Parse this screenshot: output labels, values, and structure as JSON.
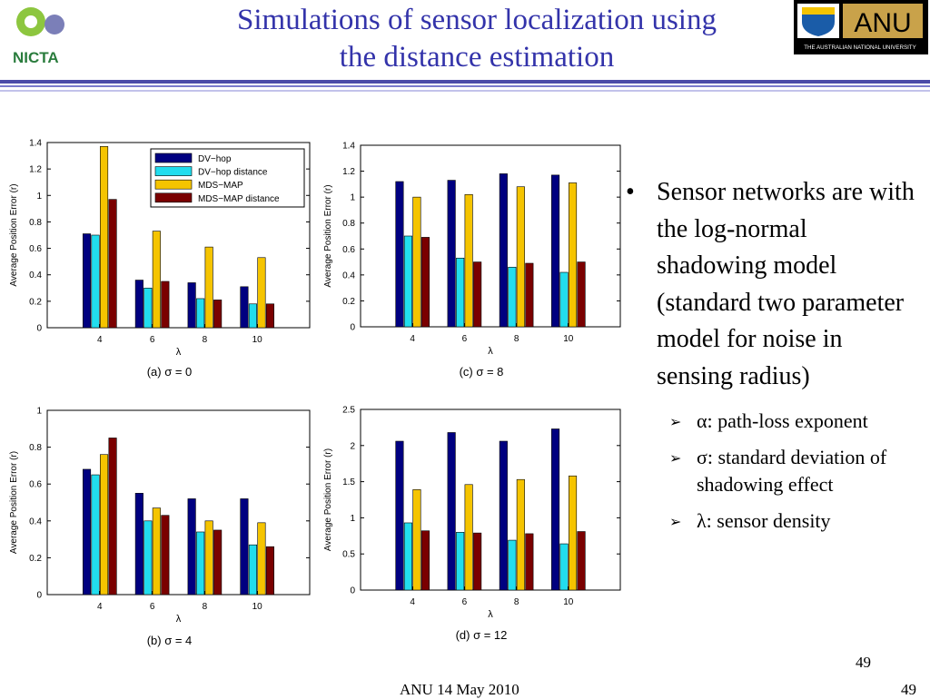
{
  "slide": {
    "title_line1": "Simulations of sensor localization using",
    "title_line2": "the distance estimation",
    "footer_date": "ANU 14 May 2010",
    "page_number_upper": "49",
    "page_number_lower": "49"
  },
  "logos": {
    "nicta_text": "NICTA",
    "anu_text": "ANU",
    "anu_subtext": "THE AUSTRALIAN NATIONAL UNIVERSITY"
  },
  "bullets": {
    "main": "Sensor networks are with the log-normal shadowing model (standard two parameter model for noise in sensing radius)",
    "sub": [
      "α: path-loss exponent",
      "σ: standard deviation of shadowing effect",
      "λ: sensor density"
    ]
  },
  "colors": {
    "title": "#3333aa",
    "series": [
      "#000080",
      "#22ddee",
      "#f5c400",
      "#7a0000"
    ]
  },
  "chart_data": [
    {
      "type": "bar",
      "caption": "(a)  σ = 0",
      "categories": [
        "4",
        "6",
        "8",
        "10"
      ],
      "xlabel": "λ",
      "ylabel": "Average Position Error (r)",
      "ylim": [
        0,
        1.4
      ],
      "yticks": [
        "0",
        "0.2",
        "0.4",
        "0.6",
        "0.8",
        "1",
        "1.2",
        "1.4"
      ],
      "legend": "top-right",
      "series": [
        {
          "name": "DV−hop",
          "values": [
            0.71,
            0.36,
            0.34,
            0.31
          ]
        },
        {
          "name": "DV−hop distance",
          "values": [
            0.7,
            0.3,
            0.22,
            0.18
          ]
        },
        {
          "name": "MDS−MAP",
          "values": [
            1.37,
            0.73,
            0.61,
            0.53
          ]
        },
        {
          "name": "MDS−MAP distance",
          "values": [
            0.97,
            0.35,
            0.21,
            0.18
          ]
        }
      ]
    },
    {
      "type": "bar",
      "caption": "(c)  σ = 8",
      "categories": [
        "4",
        "6",
        "8",
        "10"
      ],
      "xlabel": "λ",
      "ylabel": "Average Position Error (r)",
      "ylim": [
        0,
        1.4
      ],
      "yticks": [
        "0",
        "0.2",
        "0.4",
        "0.6",
        "0.8",
        "1",
        "1.2",
        "1.4"
      ],
      "series": [
        {
          "values": [
            1.12,
            1.13,
            1.18,
            1.17
          ]
        },
        {
          "values": [
            0.7,
            0.53,
            0.46,
            0.42
          ]
        },
        {
          "values": [
            1.0,
            1.02,
            1.08,
            1.11
          ]
        },
        {
          "values": [
            0.69,
            0.5,
            0.49,
            0.5
          ]
        }
      ]
    },
    {
      "type": "bar",
      "caption": "(b)  σ = 4",
      "categories": [
        "4",
        "6",
        "8",
        "10"
      ],
      "xlabel": "λ",
      "ylabel": "Average Position Error (r)",
      "ylim": [
        0,
        1
      ],
      "yticks": [
        "0",
        "0.2",
        "0.4",
        "0.6",
        "0.8",
        "1"
      ],
      "series": [
        {
          "values": [
            0.68,
            0.55,
            0.52,
            0.52
          ]
        },
        {
          "values": [
            0.65,
            0.4,
            0.34,
            0.27
          ]
        },
        {
          "values": [
            0.76,
            0.47,
            0.4,
            0.39
          ]
        },
        {
          "values": [
            0.85,
            0.43,
            0.35,
            0.26
          ]
        }
      ]
    },
    {
      "type": "bar",
      "caption": "(d)  σ = 12",
      "categories": [
        "4",
        "6",
        "8",
        "10"
      ],
      "xlabel": "λ",
      "ylabel": "Average Position Error (r)",
      "ylim": [
        0,
        2.5
      ],
      "yticks": [
        "0",
        "0.5",
        "1",
        "1.5",
        "2",
        "2.5"
      ],
      "series": [
        {
          "values": [
            2.06,
            2.18,
            2.06,
            2.23
          ]
        },
        {
          "values": [
            0.93,
            0.8,
            0.69,
            0.64
          ]
        },
        {
          "values": [
            1.39,
            1.46,
            1.53,
            1.58
          ]
        },
        {
          "values": [
            0.82,
            0.79,
            0.78,
            0.81
          ]
        }
      ]
    }
  ]
}
